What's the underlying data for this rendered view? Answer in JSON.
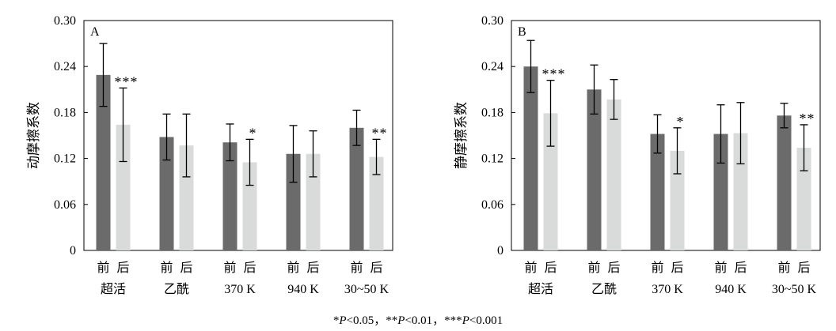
{
  "colors": {
    "before": "#6b6b6b",
    "after": "#d9dbda",
    "axis": "#000000"
  },
  "chart_data": [
    {
      "type": "bar",
      "panel": "A",
      "ylabel": "动摩擦系数",
      "ylim": [
        0,
        0.3
      ],
      "yticks": [
        "0",
        "0.06",
        "0.12",
        "0.18",
        "0.24",
        "0.30"
      ],
      "grid": false,
      "categories": [
        "超活",
        "乙酰",
        "370 K",
        "940 K",
        "30~50 K"
      ],
      "sub_labels": [
        "前",
        "后"
      ],
      "series": [
        {
          "name": "前",
          "values": [
            0.229,
            0.148,
            0.141,
            0.126,
            0.16
          ],
          "errors": [
            0.041,
            0.03,
            0.024,
            0.037,
            0.023
          ]
        },
        {
          "name": "后",
          "values": [
            0.164,
            0.137,
            0.115,
            0.126,
            0.122
          ],
          "errors": [
            0.048,
            0.041,
            0.03,
            0.03,
            0.023
          ]
        }
      ],
      "annotations": [
        "***",
        "",
        "*",
        "",
        "**"
      ]
    },
    {
      "type": "bar",
      "panel": "B",
      "ylabel": "静摩擦系数",
      "ylim": [
        0,
        0.3
      ],
      "yticks": [
        "0",
        "0.06",
        "0.12",
        "0.18",
        "0.24",
        "0.30"
      ],
      "grid": false,
      "categories": [
        "超活",
        "乙酰",
        "370 K",
        "940 K",
        "30~50 K"
      ],
      "sub_labels": [
        "前",
        "后"
      ],
      "series": [
        {
          "name": "前",
          "values": [
            0.24,
            0.21,
            0.152,
            0.152,
            0.176
          ],
          "errors": [
            0.034,
            0.032,
            0.025,
            0.038,
            0.016
          ]
        },
        {
          "name": "后",
          "values": [
            0.179,
            0.197,
            0.13,
            0.153,
            0.134
          ],
          "errors": [
            0.043,
            0.026,
            0.03,
            0.04,
            0.03
          ]
        }
      ],
      "annotations": [
        "***",
        "",
        "*",
        "",
        "**"
      ]
    }
  ],
  "footnote": "*P<0.05，**P<0.01，***P<0.001"
}
